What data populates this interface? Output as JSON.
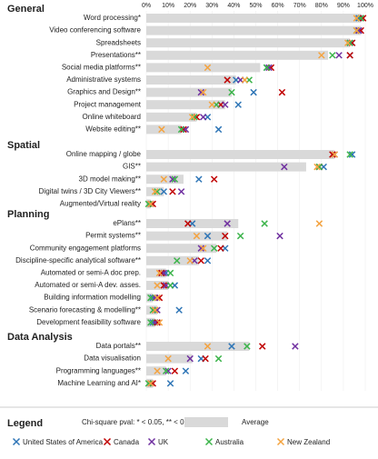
{
  "chart_data": {
    "type": "dot",
    "xlim": [
      0,
      100
    ],
    "xticks": [
      {
        "value": 0,
        "label": "0%"
      },
      {
        "value": 10,
        "label": "10%"
      },
      {
        "value": 20,
        "label": "20%"
      },
      {
        "value": 30,
        "label": "30%"
      },
      {
        "value": 40,
        "label": "40%"
      },
      {
        "value": 50,
        "label": "50%"
      },
      {
        "value": 60,
        "label": "60%"
      },
      {
        "value": 70,
        "label": "70%"
      },
      {
        "value": 80,
        "label": "80%"
      },
      {
        "value": 90,
        "label": "90%"
      },
      {
        "value": 100,
        "label": "100%"
      }
    ],
    "groups": [
      "General",
      "Spatial",
      "Planning",
      "Data Analysis"
    ],
    "categories": [
      [
        "Word processing*",
        "Video conferencing software",
        "Spreadsheets",
        "Presentations**",
        "Social media platforms**",
        "Administrative systems",
        "Graphics and Design**",
        "Project management",
        "Online whiteboard",
        "Website editing**"
      ],
      [
        "Online mapping / globe",
        "GIS**",
        "3D model making**",
        "Digital twins / 3D City Viewers**",
        "Augmented/Virtual reality"
      ],
      [
        "ePlans**",
        "Permit systems**",
        "Community engagement platforms",
        "Discipline-specific analytical software**",
        "Automated or semi-A doc prep.",
        "Automated or semi-A dev. asses.",
        "Building information modelling",
        "Scenario forecasting & modelling**",
        "Development feasibility software"
      ],
      [
        "Data portals**",
        "Data visualisation",
        "Programming languages**",
        "Machine Learning and AI*"
      ]
    ],
    "average_name": "Average",
    "average_color": "#d9d9d9",
    "average": [
      [
        98,
        98,
        93,
        83,
        52,
        41,
        39,
        36,
        23,
        16
      ],
      [
        86,
        73,
        17,
        8,
        2
      ],
      [
        42,
        37,
        32,
        24,
        9,
        10,
        3,
        5,
        4
      ],
      [
        47,
        21,
        9,
        3
      ]
    ],
    "series": [
      {
        "name": "United States of America",
        "color": "#2e75b6",
        "values": [
          [
            97,
            97,
            94,
            93,
            55,
            41,
            49,
            42,
            28,
            33
          ],
          [
            94,
            81,
            24,
            8,
            2
          ],
          [
            21,
            28,
            36,
            28,
            9,
            13,
            3,
            15,
            3
          ],
          [
            39,
            25,
            18,
            11
          ]
        ]
      },
      {
        "name": "Canada",
        "color": "#c00000",
        "values": [
          [
            99,
            98,
            94,
            93,
            57,
            37,
            62,
            34,
            23,
            17
          ],
          [
            85,
            79,
            31,
            12,
            3
          ],
          [
            19,
            36,
            34,
            25,
            7,
            8,
            6,
            4,
            5
          ],
          [
            53,
            27,
            13,
            3
          ]
        ]
      },
      {
        "name": "UK",
        "color": "#7030a0",
        "values": [
          [
            98,
            97,
            93,
            88,
            56,
            43,
            25,
            36,
            26,
            18
          ],
          [
            86,
            63,
            12,
            16,
            2
          ],
          [
            37,
            61,
            25,
            22,
            8,
            9,
            4,
            5,
            4
          ],
          [
            68,
            20,
            10,
            2
          ]
        ]
      },
      {
        "name": "Australia",
        "color": "#3cb44b",
        "values": [
          [
            98,
            96,
            93,
            85,
            55,
            47,
            39,
            32,
            22,
            16
          ],
          [
            93,
            79,
            13,
            5,
            1
          ],
          [
            54,
            43,
            31,
            14,
            11,
            11,
            2,
            3,
            2
          ],
          [
            46,
            33,
            9,
            1
          ]
        ]
      },
      {
        "name": "New Zealand",
        "color": "#f4a340",
        "values": [
          [
            96,
            96,
            92,
            80,
            28,
            45,
            26,
            30,
            21,
            7
          ],
          [
            86,
            78,
            8,
            4,
            2
          ],
          [
            79,
            23,
            26,
            20,
            6,
            5,
            5,
            4,
            6
          ],
          [
            28,
            10,
            5,
            2
          ]
        ]
      }
    ],
    "legend_title": "Legend",
    "note": "Chi-square pval: * < 0.05, ** < 0.01"
  }
}
